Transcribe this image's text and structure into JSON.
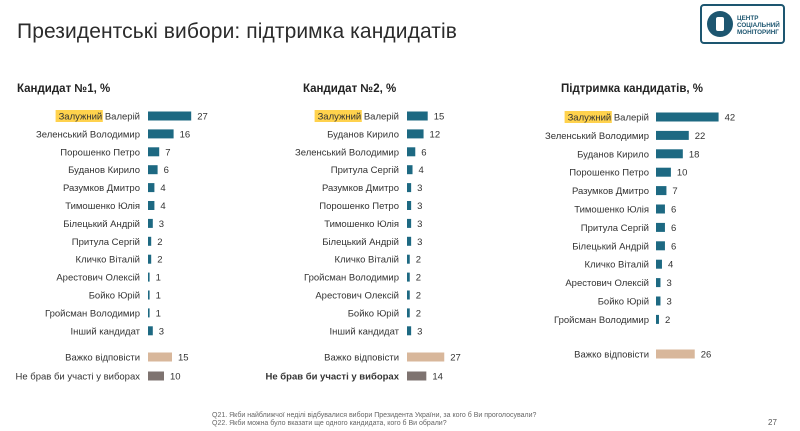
{
  "header": {
    "title": "Президентські вибори: підтримка кандидатів",
    "logo_line1": "ЦЕНТР",
    "logo_line2": "СОЦІАЛЬНИЙ",
    "logo_line3": "МОНІТОРИНГ"
  },
  "colors": {
    "bar": "#1d6982",
    "hard": "#d8b79b",
    "noparticipate": "#7e7370",
    "highlight": "#ffd24d"
  },
  "chart_data": [
    {
      "type": "bar",
      "orientation": "horizontal",
      "title": "Кандидат №1, %",
      "categories": [
        "Залужний Валерій",
        "Зеленський Володимир",
        "Порошенко Петро",
        "Буданов Кирило",
        "Разумков Дмитро",
        "Тимошенко Юлія",
        "Білецький Андрій",
        "Притула Сергій",
        "Кличко Віталій",
        "Арестович Олексій",
        "Бойко Юрій",
        "Гройсман Володимир",
        "Інший кандидат"
      ],
      "values": [
        27,
        16,
        7,
        6,
        4,
        4,
        3,
        2,
        2,
        1,
        1,
        1,
        3
      ],
      "highlight_index": 0,
      "extra": [
        {
          "label": "Важко відповісти",
          "value": 15,
          "kind": "hard"
        },
        {
          "label": "Не брав би участі у виборах",
          "value": 10,
          "kind": "noparticipate"
        }
      ],
      "xlim": [
        0,
        42
      ]
    },
    {
      "type": "bar",
      "orientation": "horizontal",
      "title": "Кандидат №2, %",
      "categories": [
        "Залужний Валерій",
        "Буданов Кирило",
        "Зеленський Володимир",
        "Притула Сергій",
        "Разумков Дмитро",
        "Порошенко Петро",
        "Тимошенко Юлія",
        "Білецький Андрій",
        "Кличко Віталій",
        "Гройсман Володимир",
        "Арестович Олексій",
        "Бойко Юрій",
        "Інший кандидат"
      ],
      "values": [
        15,
        12,
        6,
        4,
        3,
        3,
        3,
        3,
        2,
        2,
        2,
        2,
        3
      ],
      "highlight_index": 0,
      "extra": [
        {
          "label": "Важко відповісти",
          "value": 27,
          "kind": "hard"
        },
        {
          "label": "Не брав би участі у виборах",
          "value": 14,
          "kind": "noparticipate"
        }
      ],
      "xlim": [
        0,
        42
      ]
    },
    {
      "type": "bar",
      "orientation": "horizontal",
      "title": "Підтримка кандидатів, %",
      "categories": [
        "Залужний Валерій",
        "Зеленський Володимир",
        "Буданов Кирило",
        "Порошенко Петро",
        "Разумков Дмитро",
        "Тимошенко Юлія",
        "Притула Сергій",
        "Білецький Андрій",
        "Кличко Віталій",
        "Арестович Олексій",
        "Бойко Юрій",
        "Гройсман Володимир"
      ],
      "values": [
        42,
        22,
        18,
        10,
        7,
        6,
        6,
        6,
        4,
        3,
        3,
        2
      ],
      "highlight_index": 0,
      "extra": [
        {
          "label": "Важко відповісти",
          "value": 26,
          "kind": "hard"
        }
      ],
      "xlim": [
        0,
        42
      ]
    }
  ],
  "footnotes": {
    "q21": "Q21. Якби найближчої неділі відбувалися вибори Президента України, за кого б Ви проголосували?",
    "q22": "Q22. Якби можна було вказати ще одного кандидата, кого б Ви обрали?"
  },
  "page_number": "27"
}
